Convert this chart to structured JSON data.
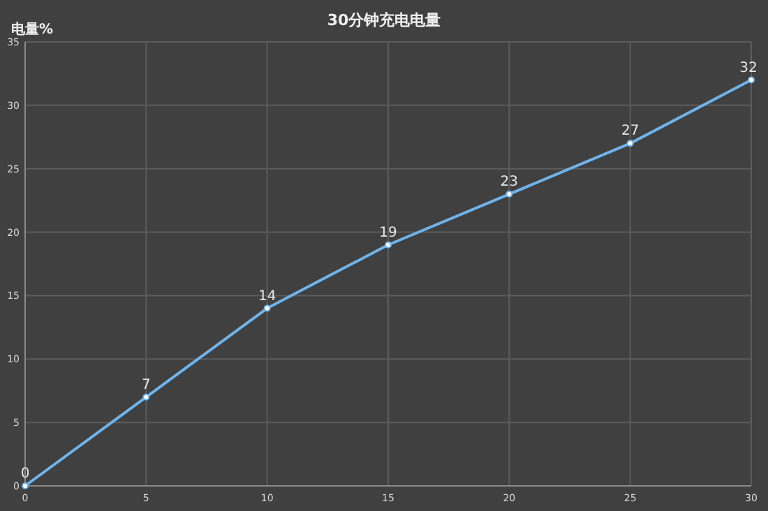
{
  "chart_data": {
    "type": "line",
    "title": "30分钟充电电量",
    "ylabel": "电量%",
    "x": [
      0,
      5,
      10,
      15,
      20,
      25,
      30
    ],
    "values": [
      0,
      7,
      14,
      19,
      23,
      27,
      32
    ],
    "color": "#6fb3ea",
    "marker": "circle",
    "data_labels": true,
    "grid": true,
    "xlim": [
      0,
      30
    ],
    "ylim": [
      0,
      35
    ],
    "xticks": [
      0,
      5,
      10,
      15,
      20,
      25,
      30
    ],
    "yticks": [
      0,
      5,
      10,
      15,
      20,
      25,
      30,
      35
    ]
  }
}
